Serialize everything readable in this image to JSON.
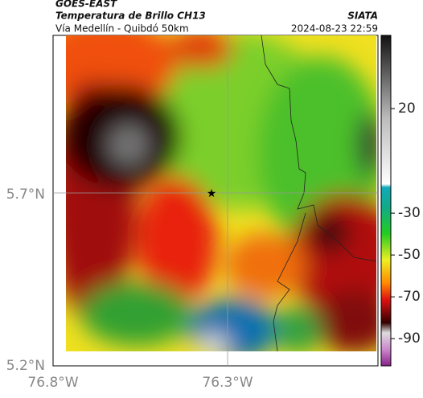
{
  "header": {
    "source": "GOES-EAST",
    "product": "Temperatura de Brillo CH13",
    "agency": "SIATA",
    "route": "Vía Medellín - Quibdó 50km",
    "timestamp": "2024-08-23 22:59"
  },
  "map": {
    "lat_ticks": [
      "5.7°N",
      "5.2°N"
    ],
    "lon_ticks": [
      "76.8°W",
      "76.3°W"
    ]
  },
  "colorbar": {
    "lim": [
      -103,
      55
    ],
    "ticks": [
      20,
      -30,
      -50,
      -70,
      -90
    ]
  }
}
